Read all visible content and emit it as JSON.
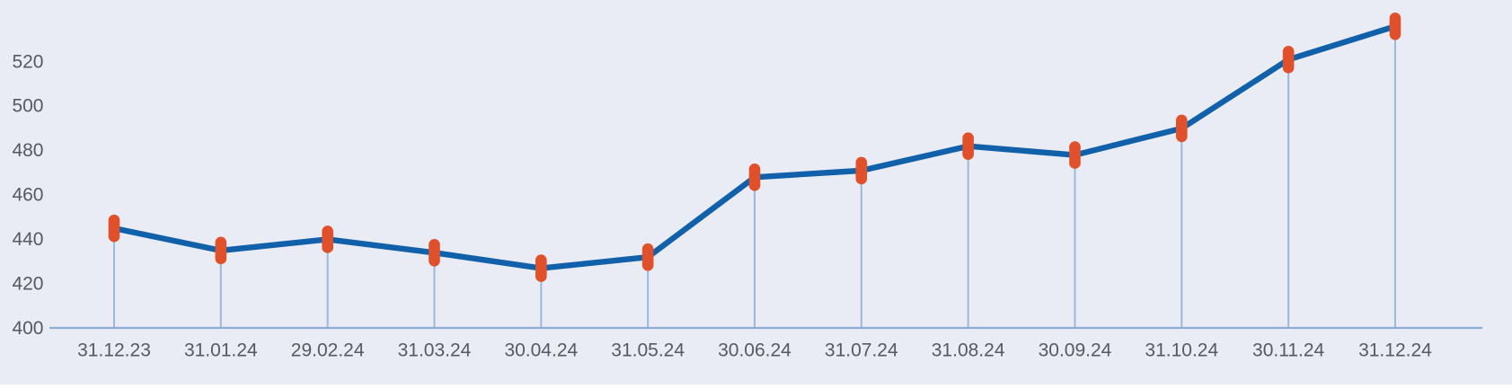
{
  "chart_data": {
    "type": "line",
    "title": "",
    "xlabel": "",
    "ylabel": "",
    "categories": [
      "31.12.23",
      "31.01.24",
      "29.02.24",
      "31.03.24",
      "30.04.24",
      "31.05.24",
      "30.06.24",
      "31.07.24",
      "31.08.24",
      "30.09.24",
      "31.10.24",
      "30.11.24",
      "31.12.24"
    ],
    "values": [
      445,
      435,
      440,
      434,
      427,
      432,
      468,
      471,
      482,
      478,
      490,
      521,
      536
    ],
    "yticks": [
      400,
      420,
      440,
      460,
      480,
      500,
      520
    ],
    "ylim": [
      400,
      546
    ],
    "grid": false,
    "legend": null,
    "marker_shape": "capsule",
    "drop_lines": true
  },
  "colors": {
    "background": "#E9ECF5",
    "line": "#1060AA",
    "marker": "#E0502A",
    "drop_line": "#9DB7DE",
    "axis_line": "#8EABD4",
    "label_text": "#56595F"
  }
}
